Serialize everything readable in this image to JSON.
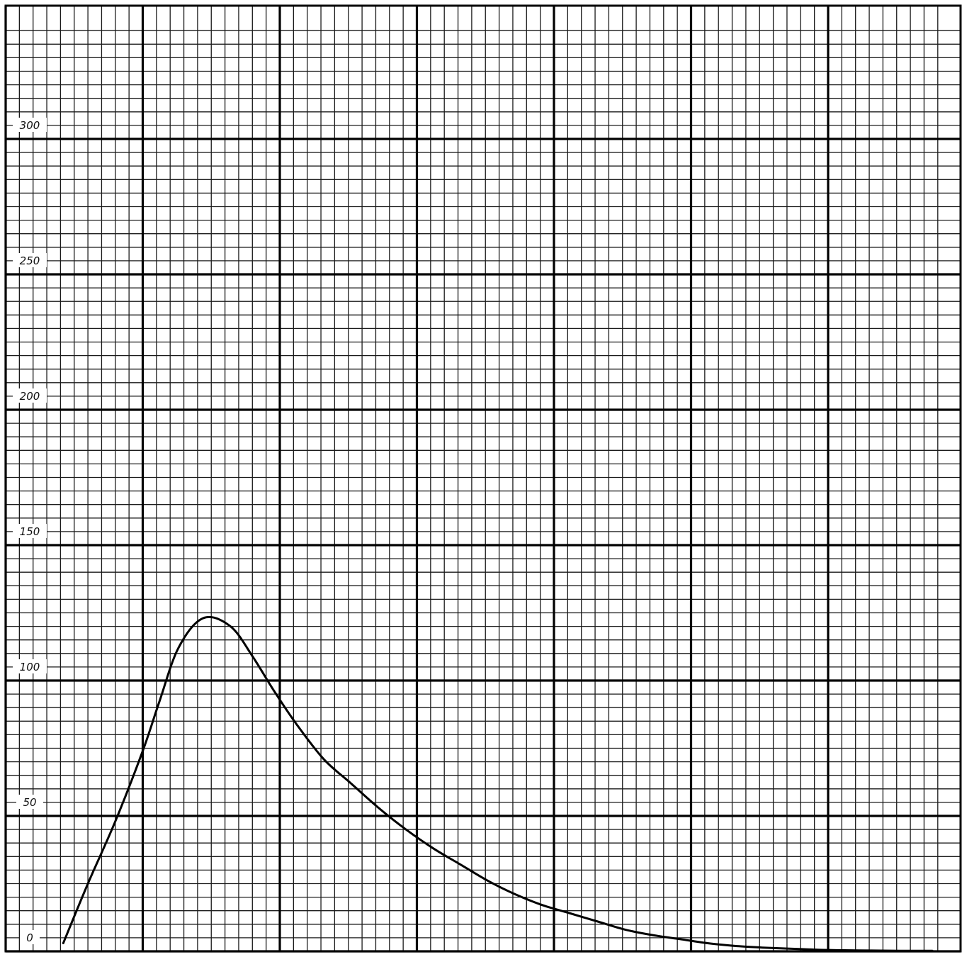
{
  "chart_data": {
    "type": "line",
    "title": "",
    "xlabel": "",
    "ylabel": "",
    "xlim": [
      0,
      34
    ],
    "ylim": [
      0,
      340
    ],
    "grid": true,
    "yticks": [
      {
        "value": 0,
        "label": "0"
      },
      {
        "value": 50,
        "label": "50"
      },
      {
        "value": 100,
        "label": "100"
      },
      {
        "value": 150,
        "label": "150"
      },
      {
        "value": 200,
        "label": "200"
      },
      {
        "value": 250,
        "label": "250"
      },
      {
        "value": 300,
        "label": "300"
      }
    ],
    "series": [
      {
        "x": [
          2.1,
          3.0,
          4.0,
          5.0,
          5.6,
          6.3,
          7.2,
          8.2,
          9.0,
          9.8,
          10.6,
          11.6,
          12.6,
          13.6,
          14.6,
          15.6,
          16.6,
          17.6,
          18.6,
          19.6,
          20.6,
          21.6,
          22.6,
          23.6,
          24.6,
          25.6,
          26.6,
          27.6,
          28.6,
          29.6,
          30.6,
          31.6,
          32.6,
          33.8
        ],
        "y": [
          3,
          25,
          48,
          74,
          92,
          112,
          123,
          120,
          109,
          96,
          84,
          71,
          62,
          53,
          45,
          38,
          32,
          26,
          21,
          17,
          14,
          11,
          8,
          6,
          4.5,
          3,
          2,
          1.4,
          1,
          0.6,
          0.4,
          0.3,
          0.2,
          0.2
        ]
      }
    ],
    "colors": {
      "paper": "#ffffff",
      "grid_minor": "#1a1a1a",
      "grid_major": "#000000",
      "curve": "#000000"
    }
  }
}
